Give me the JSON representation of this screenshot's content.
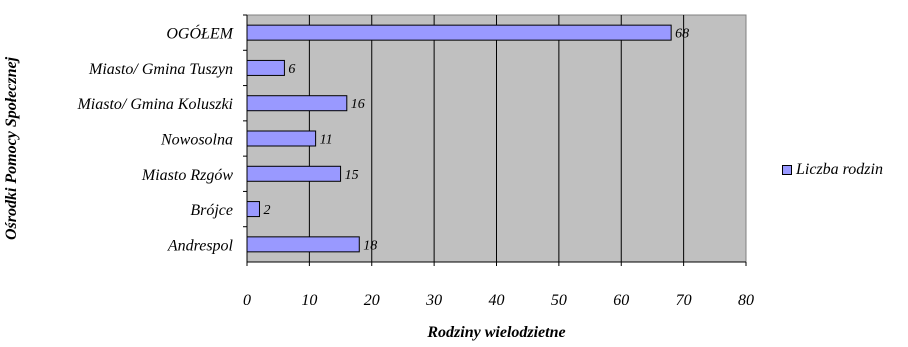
{
  "chart_data": {
    "type": "bar",
    "orientation": "horizontal",
    "categories": [
      "OGÓŁEM",
      "Miasto/ Gmina Tuszyn",
      "Miasto/ Gmina Koluszki",
      "Nowosolna",
      "Miasto Rzgów",
      "Brójce",
      "Andrespol"
    ],
    "series": [
      {
        "name": "Liczba rodzin",
        "values": [
          68,
          6,
          16,
          11,
          15,
          2,
          18
        ]
      }
    ],
    "data_labels": [
      "68",
      "6",
      "16",
      "11",
      "15",
      "2",
      "18"
    ],
    "xlabel": "Rodziny wielodzietne",
    "ylabel": "Ośrodki Pomocy Społecznej",
    "xlim": [
      0,
      80
    ],
    "xticks": [
      0,
      10,
      20,
      30,
      40,
      50,
      60,
      70,
      80
    ],
    "xtick_labels": [
      "0",
      "10",
      "20",
      "30",
      "40",
      "50",
      "60",
      "70",
      "80"
    ],
    "grid": true,
    "legend_position": "right",
    "colors": {
      "bar_fill": "#9999ff",
      "bar_stroke": "#000000",
      "plot_background": "#c0c0c0",
      "gridline": "#000000"
    }
  }
}
